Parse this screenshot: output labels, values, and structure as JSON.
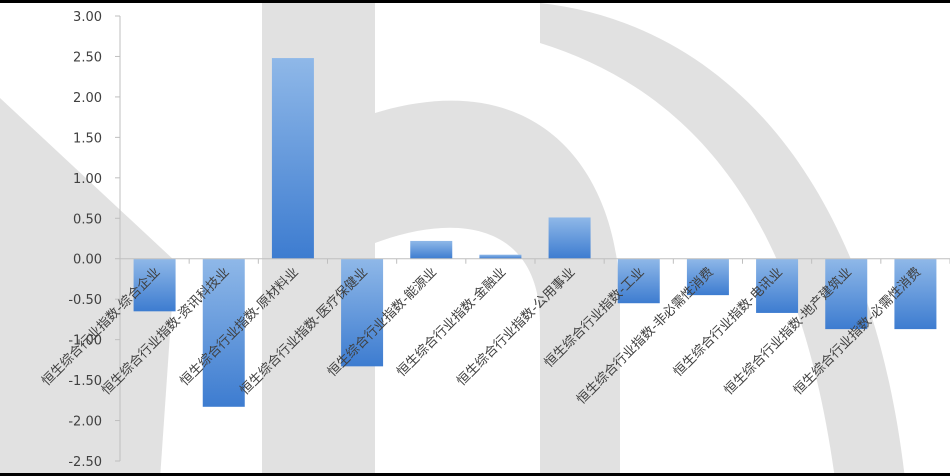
{
  "chart_data": {
    "type": "bar",
    "categories": [
      "恒生综合行业指数-综合企业",
      "恒生综合行业指数-资讯科技业",
      "恒生综合行业指数-原材料业",
      "恒生综合行业指数-医疗保健业",
      "恒生综合行业指数-能源业",
      "恒生综合行业指数-金融业",
      "恒生综合行业指数-公用事业",
      "恒生综合行业指数-工业",
      "恒生综合行业指数-非必需性消费",
      "恒生综合行业指数-电讯业",
      "恒生综合行业指数-地产建筑业",
      "恒生综合行业指数-必需性消费"
    ],
    "values": [
      -0.65,
      -1.83,
      2.48,
      -1.33,
      0.22,
      0.05,
      0.51,
      -0.55,
      -0.45,
      -0.67,
      -0.87,
      -0.87
    ],
    "ylim": [
      -2.5,
      3.0
    ],
    "yticks": [
      "3.00",
      "2.50",
      "2.00",
      "1.50",
      "1.00",
      "0.50",
      "0.00",
      "-0.50",
      "-1.00",
      "-1.50",
      "-2.00",
      "-2.50"
    ],
    "ytick_values": [
      3.0,
      2.5,
      2.0,
      1.5,
      1.0,
      0.5,
      0.0,
      -0.5,
      -1.0,
      -1.5,
      -2.0,
      -2.5
    ],
    "grid": false,
    "colors": {
      "bar_top": "#8fb8e8",
      "bar_bottom": "#3d7cd0",
      "axis": "#bfbfbf",
      "text": "#404040",
      "watermark": "#d9d9d9"
    }
  }
}
